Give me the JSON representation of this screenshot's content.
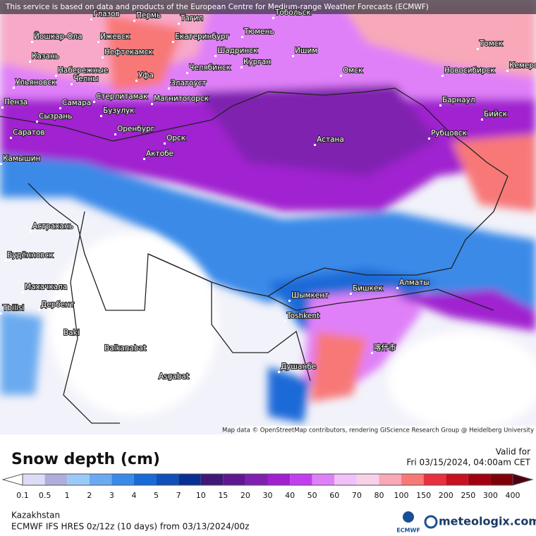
{
  "header": {
    "notice": "This service is based on data and products of the European Centre for Medium-range Weather Forecasts (ECMWF)"
  },
  "map": {
    "cities": [
      "Глазов",
      "Пермь",
      "Тагил",
      "Тобольск",
      "Йошкар-Ола",
      "Ижевск",
      "Екатеринбург",
      "Тюмень",
      "Томск",
      "Казань",
      "Нефтекамск",
      "Шадринск",
      "Ишим",
      "Омск",
      "Новосибирск",
      "Кемеров",
      "Набережные",
      "Челны",
      "Уфа",
      "Челябинск",
      "Курган",
      "Ульяновск",
      "Златоуст",
      "Стерлитамак",
      "Магнитогорск",
      "Барнаул",
      "Бийск",
      "Пенза",
      "Самара",
      "Сызрань",
      "Бузулук",
      "Оренбург",
      "Рубцовск",
      "Саратов",
      "Орск",
      "Астана",
      "Актобе",
      "Камышин",
      "Астрахань",
      "Будённовск",
      "Махачкала",
      "Дербент",
      "Tbilisi",
      "Шымкент",
      "Бишкек",
      "Алматы",
      "Toshkent",
      "Baki",
      "Balkanabat",
      "喀什市",
      "Душанбе",
      "Asgabat"
    ],
    "attribution": "Map data © OpenStreetMap contributors, rendering GIScience Research Group @ Heidelberg University"
  },
  "legend": {
    "title": "Snow depth (cm)",
    "valid_label": "Valid for",
    "valid_time": "Fri 03/15/2024, 04:00am CET",
    "ticks": [
      "0.1",
      "0.5",
      "1",
      "2",
      "3",
      "4",
      "5",
      "7",
      "10",
      "15",
      "20",
      "30",
      "40",
      "50",
      "60",
      "70",
      "80",
      "100",
      "150",
      "200",
      "250",
      "300",
      "400"
    ],
    "colors": [
      "#dcdcf6",
      "#aeaedc",
      "#9ccaf8",
      "#6aaaf0",
      "#3a8ae8",
      "#1a6ad8",
      "#1050b8",
      "#083090",
      "#401878",
      "#601890",
      "#8020b0",
      "#a020d0",
      "#c040f0",
      "#e080f8",
      "#f0c0f8",
      "#f8d0e8",
      "#f8a8b8",
      "#f87878",
      "#e83040",
      "#c81020",
      "#a00010",
      "#800008"
    ]
  },
  "footer": {
    "region": "Kazakhstan",
    "model": "ECMWF IFS HRES 0z/12z (10 days) from 03/13/2024/00z",
    "ecmwf_logo": "ECMWF",
    "brand": "meteologix.com"
  }
}
